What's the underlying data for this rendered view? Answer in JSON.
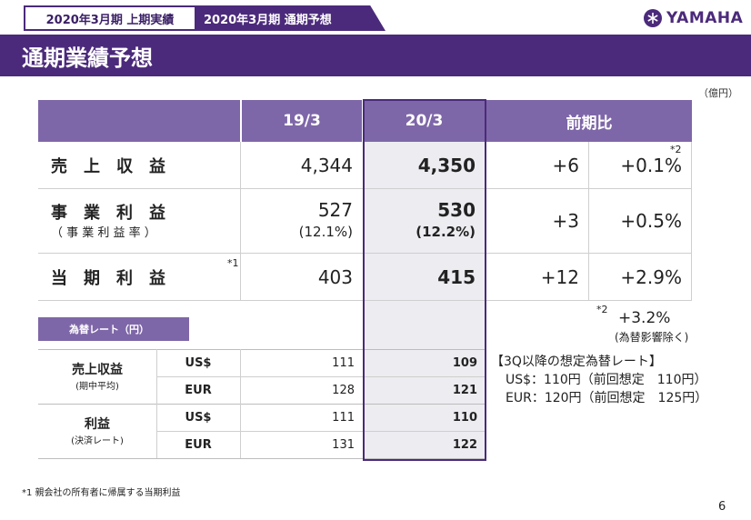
{
  "tabs": {
    "tab1": "2020年3月期 上期実績",
    "tab2": "2020年3月期 通期予想"
  },
  "logo": {
    "text": "YAMAHA"
  },
  "title": "通期業績予想",
  "unit": "（億円）",
  "table": {
    "headers": {
      "prev": "19/3",
      "curr": "20/3",
      "diff": "前期比"
    },
    "rows": [
      {
        "label": "売　上　収　益",
        "prev": "4,344",
        "curr": "4,350",
        "diff": "+6",
        "pct": "+0.1%",
        "note": "*2"
      },
      {
        "label": "事　業　利　益",
        "sublabel": "（ 事 業 利 益 率 ）",
        "prev": "527",
        "prev_sub": "(12.1%)",
        "curr": "530",
        "curr_sub": "(12.2%)",
        "diff": "+3",
        "pct": "+0.5%"
      },
      {
        "label": "当　期　利　益",
        "note": "*1",
        "prev": "403",
        "curr": "415",
        "diff": "+12",
        "pct": "+2.9%"
      }
    ]
  },
  "fx_excluded": {
    "note": "*2",
    "value": "+3.2%",
    "caption": "(為替影響除く)"
  },
  "fx": {
    "label": "為替レート（円）",
    "groups": [
      {
        "label": "売上収益",
        "sub": "(期中平均)",
        "rows": [
          {
            "cur": "US$",
            "prev": "111",
            "curr": "109"
          },
          {
            "cur": "EUR",
            "prev": "128",
            "curr": "121"
          }
        ]
      },
      {
        "label": "利益",
        "sub": "(決済レート)",
        "rows": [
          {
            "cur": "US$",
            "prev": "111",
            "curr": "110"
          },
          {
            "cur": "EUR",
            "prev": "131",
            "curr": "122"
          }
        ]
      }
    ]
  },
  "assumption": {
    "title": "【3Q以降の想定為替レート】",
    "usd": "US$：110円（前回想定　110円）",
    "eur": "EUR：120円（前回想定　125円）"
  },
  "footnote": "*1 親会社の所有者に帰属する当期利益",
  "page_number": "6"
}
